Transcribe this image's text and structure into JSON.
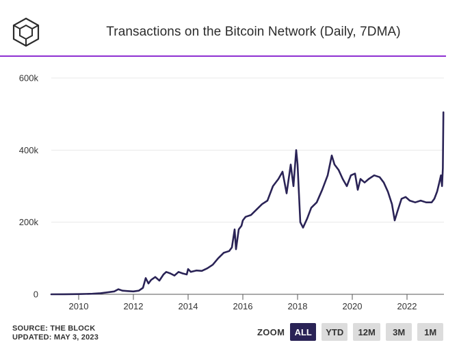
{
  "header": {
    "logo": "cube-logo-icon",
    "title": "Transactions on the Bitcoin Network (Daily, 7DMA)"
  },
  "footer": {
    "source": "SOURCE: THE BLOCK",
    "updated": "UPDATED: MAY 3, 2023"
  },
  "zoom": {
    "label": "ZOOM",
    "buttons": [
      "ALL",
      "YTD",
      "12M",
      "3M",
      "1M"
    ],
    "active": "ALL"
  },
  "colors": {
    "line": "#2a2356",
    "accent_rule": "#8e2fd1",
    "grid": "#e8e8e8",
    "button_active": "#2a2356",
    "button": "#dcdcdc"
  },
  "chart_data": {
    "type": "line",
    "title": "Transactions on the Bitcoin Network (Daily, 7DMA)",
    "xlabel": "",
    "ylabel": "",
    "x_ticks": [
      "2010",
      "2012",
      "2014",
      "2016",
      "2018",
      "2020",
      "2022"
    ],
    "y_ticks": [
      "0",
      "200k",
      "400k",
      "600k"
    ],
    "xlim": [
      2009.0,
      2023.35
    ],
    "ylim": [
      0,
      600000
    ],
    "grid": true,
    "legend": "none",
    "series": [
      {
        "name": "Transactions (7DMA)",
        "x": [
          2009.0,
          2009.5,
          2010.0,
          2010.5,
          2010.8,
          2011.0,
          2011.3,
          2011.45,
          2011.6,
          2011.8,
          2012.0,
          2012.2,
          2012.35,
          2012.45,
          2012.55,
          2012.65,
          2012.8,
          2012.95,
          2013.1,
          2013.2,
          2013.35,
          2013.5,
          2013.65,
          2013.8,
          2013.95,
          2014.0,
          2014.1,
          2014.3,
          2014.5,
          2014.7,
          2014.9,
          2015.1,
          2015.3,
          2015.5,
          2015.6,
          2015.7,
          2015.75,
          2015.85,
          2015.95,
          2016.0,
          2016.1,
          2016.3,
          2016.5,
          2016.7,
          2016.9,
          2017.1,
          2017.3,
          2017.45,
          2017.6,
          2017.75,
          2017.85,
          2017.95,
          2018.0,
          2018.05,
          2018.1,
          2018.2,
          2018.35,
          2018.5,
          2018.7,
          2018.9,
          2019.1,
          2019.25,
          2019.35,
          2019.5,
          2019.65,
          2019.8,
          2019.95,
          2020.1,
          2020.2,
          2020.3,
          2020.45,
          2020.6,
          2020.8,
          2021.0,
          2021.15,
          2021.3,
          2021.45,
          2021.55,
          2021.65,
          2021.8,
          2021.95,
          2022.1,
          2022.3,
          2022.5,
          2022.7,
          2022.9,
          2023.0,
          2023.1,
          2023.18,
          2023.24,
          2023.28,
          2023.31,
          2023.33
        ],
        "y": [
          0,
          200,
          500,
          1500,
          3000,
          5000,
          8000,
          14000,
          10000,
          9000,
          8000,
          10000,
          18000,
          45000,
          30000,
          40000,
          48000,
          38000,
          55000,
          62000,
          58000,
          52000,
          62000,
          58000,
          55000,
          70000,
          62000,
          66000,
          65000,
          72000,
          82000,
          100000,
          115000,
          120000,
          130000,
          180000,
          125000,
          180000,
          190000,
          205000,
          215000,
          220000,
          235000,
          250000,
          260000,
          300000,
          320000,
          340000,
          280000,
          360000,
          300000,
          400000,
          360000,
          280000,
          200000,
          185000,
          210000,
          240000,
          255000,
          290000,
          330000,
          385000,
          360000,
          345000,
          320000,
          300000,
          330000,
          335000,
          290000,
          320000,
          310000,
          320000,
          330000,
          325000,
          310000,
          285000,
          250000,
          205000,
          230000,
          265000,
          270000,
          260000,
          255000,
          260000,
          255000,
          255000,
          265000,
          285000,
          310000,
          330000,
          300000,
          350000,
          505000
        ]
      }
    ]
  }
}
